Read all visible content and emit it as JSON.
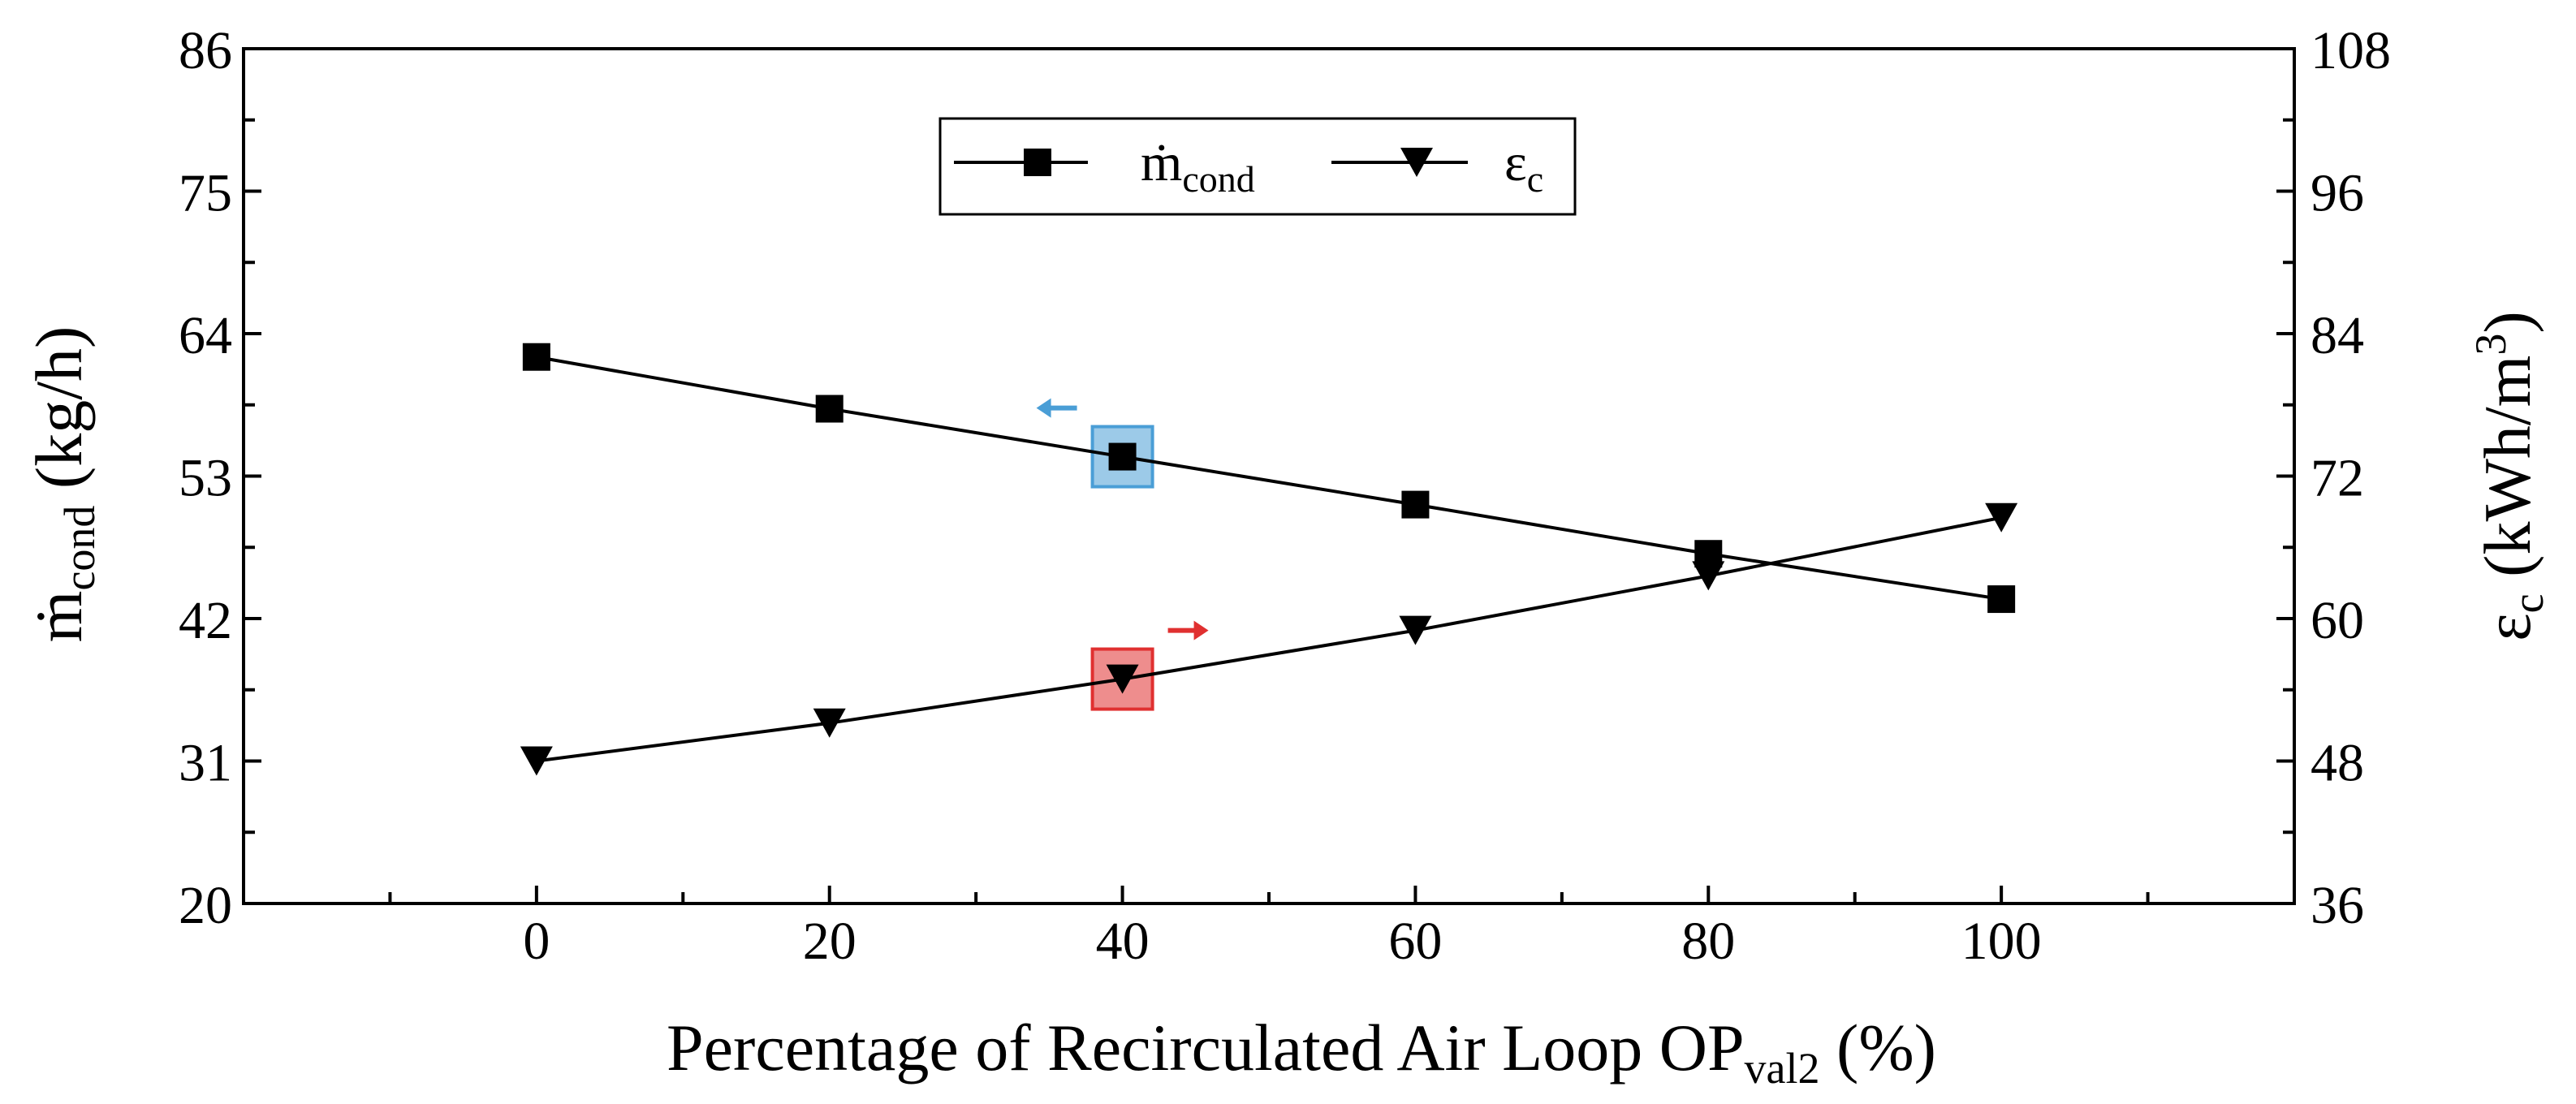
{
  "chart_data": {
    "type": "line",
    "x_label": "Percentage of Recirculated Air Loop OP",
    "x_label_sub": "val2",
    "x_label_tail": " (%)",
    "x_ticks": [
      "0",
      "20",
      "40",
      "60",
      "80",
      "100"
    ],
    "x_range": [
      -20,
      120
    ],
    "y_left": {
      "label_main": "ṁ",
      "label_sub": "cond",
      "label_tail": " (kg/h)",
      "ticks": [
        "20",
        "31",
        "42",
        "53",
        "64",
        "75",
        "86"
      ],
      "range": [
        20,
        86
      ]
    },
    "y_right": {
      "label_main": "ε",
      "label_sub": "c",
      "label_tail": " (kWh/m",
      "label_sup": "3",
      "label_close": ")",
      "ticks": [
        "36",
        "48",
        "60",
        "72",
        "84",
        "96",
        "108"
      ],
      "range": [
        36,
        108
      ]
    },
    "series": [
      {
        "name": "ṁ",
        "name_sub": "cond",
        "axis": "left",
        "marker": "square",
        "x": [
          0,
          20,
          40,
          60,
          80,
          100
        ],
        "y": [
          62.2,
          58.2,
          54.5,
          50.8,
          47.0,
          43.5
        ]
      },
      {
        "name": "ε",
        "name_sub": "c",
        "axis": "right",
        "marker": "triangle-down",
        "x": [
          0,
          20,
          40,
          60,
          80,
          100
        ],
        "y": [
          48.0,
          51.2,
          54.9,
          59.0,
          63.6,
          68.5
        ]
      }
    ],
    "highlights": [
      {
        "series": 0,
        "index": 2,
        "color": "#4a9ed6",
        "arrow": "left"
      },
      {
        "series": 1,
        "index": 2,
        "color": "#e03030",
        "arrow": "right"
      }
    ],
    "legend": "top-center"
  }
}
